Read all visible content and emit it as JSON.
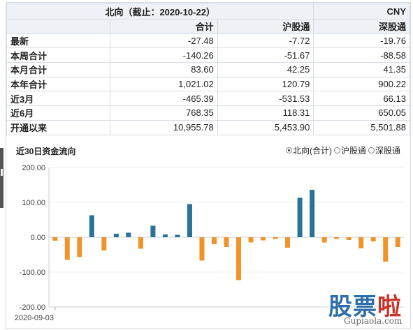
{
  "table": {
    "title": "北向（截止：2020-10-22）",
    "currency": "CNY",
    "columns": [
      "合计",
      "沪股通",
      "深股通"
    ],
    "rows": [
      {
        "label": "最新",
        "values": [
          "-27.48",
          "-7.72",
          "-19.76"
        ]
      },
      {
        "label": "本周合计",
        "values": [
          "-140.26",
          "-51.67",
          "-88.58"
        ]
      },
      {
        "label": "本月合计",
        "values": [
          "83.60",
          "42.25",
          "41.35"
        ]
      },
      {
        "label": "本年合计",
        "values": [
          "1,021.02",
          "120.79",
          "900.22"
        ]
      },
      {
        "label": "近3月",
        "values": [
          "-465.39",
          "-531.53",
          "66.13"
        ]
      },
      {
        "label": "近6月",
        "values": [
          "768.35",
          "118.31",
          "650.05"
        ]
      },
      {
        "label": "开通以来",
        "values": [
          "10,955.78",
          "5,453.90",
          "5,501.88"
        ]
      }
    ]
  },
  "chart": {
    "title": "近30日资金流向",
    "radio_options": [
      {
        "label": "北向(合计)",
        "selected": true
      },
      {
        "label": "沪股通",
        "selected": false
      },
      {
        "label": "深股通",
        "selected": false
      }
    ]
  },
  "chart_data": {
    "type": "bar",
    "title": "近30日资金流向",
    "x_first_label": "2020-09-03",
    "y_ticks": [
      "200.00",
      "100.00",
      "0.00",
      "-100.00",
      "-200.00"
    ],
    "ylim": [
      -200,
      200
    ],
    "grid": true,
    "legend": "none",
    "colors": {
      "positive": "#2a7396",
      "negative": "#f0932b"
    },
    "values": [
      -10,
      -65,
      -57,
      63,
      -38,
      10,
      13,
      -33,
      33,
      8,
      7,
      95,
      -67,
      -20,
      -28,
      -123,
      -15,
      -9,
      -5,
      -30,
      113,
      136,
      -15,
      -5,
      -8,
      -32,
      -12,
      -70,
      -28
    ]
  },
  "watermark": {
    "brand_prefix": "股票",
    "brand_highlight": "啦",
    "url": "Gupiaola.com"
  }
}
